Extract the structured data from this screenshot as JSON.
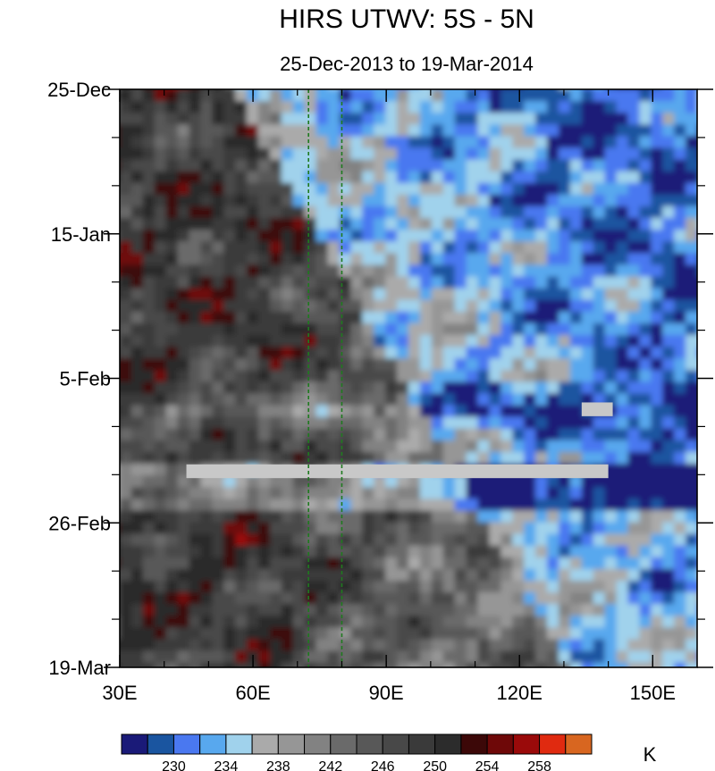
{
  "chart_data": {
    "type": "heatmap",
    "title": "HIRS UTWV: 5S - 5N",
    "subtitle": "25-Dec-2013 to 19-Mar-2014",
    "x_axis": {
      "range": [
        30,
        160
      ],
      "ticks": [
        {
          "value": 30,
          "label": "30E"
        },
        {
          "value": 60,
          "label": "60E"
        },
        {
          "value": 90,
          "label": "90E"
        },
        {
          "value": 120,
          "label": "120E"
        },
        {
          "value": 150,
          "label": "150E"
        }
      ],
      "minor_step": 10
    },
    "y_axis": {
      "range_days": [
        0,
        84
      ],
      "start": "25-Dec-2013",
      "end": "19-Mar-2014",
      "ticks": [
        {
          "day": 0,
          "label": "25-Dec"
        },
        {
          "day": 21,
          "label": "15-Jan"
        },
        {
          "day": 42,
          "label": "5-Feb"
        },
        {
          "day": 63,
          "label": "26-Feb"
        },
        {
          "day": 84,
          "label": "19-Mar"
        }
      ],
      "minor_step_days": 7
    },
    "reference_lines_lon": [
      72.5,
      80
    ],
    "reference_line_color": "#1f7a1f",
    "missing_data_color": "#c8c8c8",
    "missing_data": [
      {
        "lon": [
          45,
          140
        ],
        "day": [
          54.5,
          56.5
        ]
      },
      {
        "lon": [
          134,
          141
        ],
        "day": [
          45.5,
          47.5
        ]
      }
    ],
    "colorbar": {
      "unit": "K",
      "levels": [
        228,
        230,
        232,
        234,
        236,
        238,
        240,
        242,
        244,
        246,
        248,
        250,
        252,
        254,
        256,
        258,
        260
      ],
      "tick_labels": [
        "230",
        "234",
        "238",
        "242",
        "246",
        "250",
        "254",
        "258"
      ],
      "tick_values": [
        230,
        234,
        238,
        242,
        246,
        250,
        254,
        258
      ],
      "colors": [
        "#1a1a78",
        "#1a55a0",
        "#4a78f0",
        "#58a8ee",
        "#a0d2ec",
        "#aaaaaa",
        "#969696",
        "#828282",
        "#6a6a6a",
        "#585858",
        "#484848",
        "#3a3a3a",
        "#2c2c2c",
        "#3c0808",
        "#6e0808",
        "#9a0a0a",
        "#e02a10",
        "#d86620"
      ]
    }
  }
}
